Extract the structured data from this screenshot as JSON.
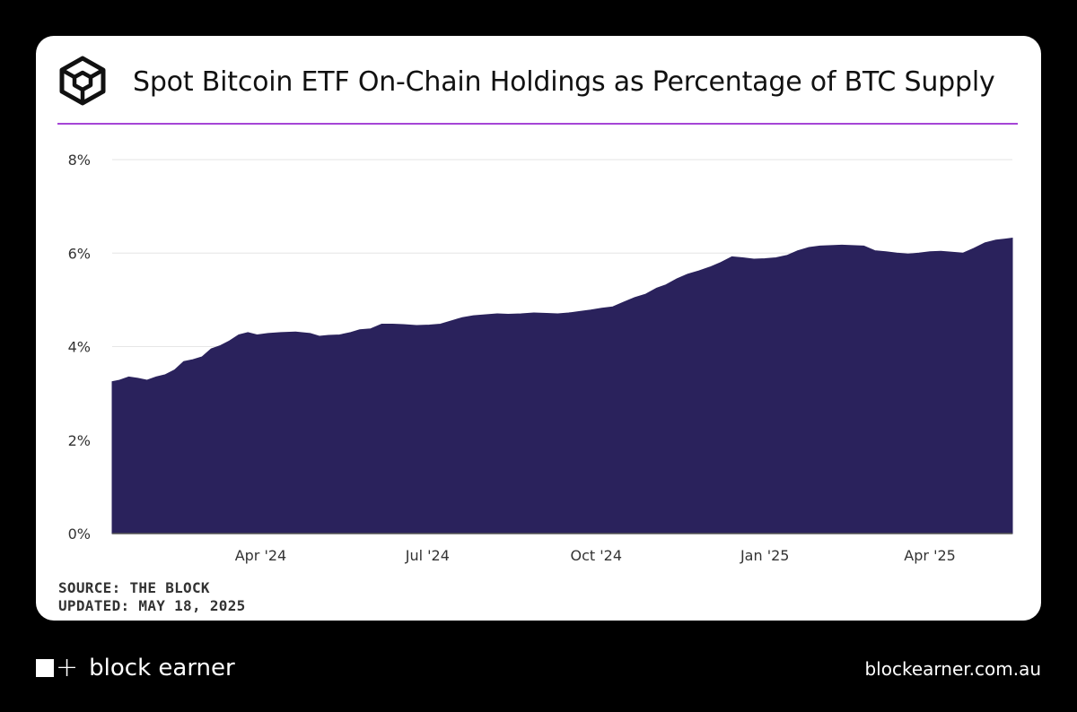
{
  "header": {
    "title": "Spot Bitcoin ETF On-Chain Holdings as Percentage of BTC Supply",
    "logo_icon": "the-block-cube-logo"
  },
  "footer_card": {
    "source": "SOURCE: THE BLOCK",
    "updated": "UPDATED: MAY 18, 2025"
  },
  "brand": {
    "name": "block earner",
    "url": "blockearner.com.au"
  },
  "colors": {
    "background": "#000000",
    "card": "#ffffff",
    "area_fill": "#2a225c",
    "accent_rule": "#a545d6",
    "grid": "#e6e6e6"
  },
  "chart_data": {
    "type": "area",
    "title": "Spot Bitcoin ETF On-Chain Holdings as Percentage of BTC Supply",
    "xlabel": "",
    "ylabel": "",
    "ylim": [
      0,
      8
    ],
    "yticks": [
      0,
      2,
      4,
      6,
      8
    ],
    "ytick_labels": [
      "0%",
      "2%",
      "4%",
      "6%",
      "8%"
    ],
    "xlim": [
      "2024-01-11",
      "2025-05-16"
    ],
    "xtick_labels": [
      {
        "date": "2024-04-01",
        "label": "Apr '24"
      },
      {
        "date": "2024-07-01",
        "label": "Jul '24"
      },
      {
        "date": "2024-10-01",
        "label": "Oct '24"
      },
      {
        "date": "2025-01-01",
        "label": "Jan '25"
      },
      {
        "date": "2025-04-01",
        "label": "Apr '25"
      }
    ],
    "grid": true,
    "series": [
      {
        "points": [
          [
            "2024-01-11",
            3.25
          ],
          [
            "2024-01-15",
            3.28
          ],
          [
            "2024-01-20",
            3.35
          ],
          [
            "2024-01-25",
            3.32
          ],
          [
            "2024-01-30",
            3.28
          ],
          [
            "2024-02-04",
            3.35
          ],
          [
            "2024-02-09",
            3.4
          ],
          [
            "2024-02-14",
            3.5
          ],
          [
            "2024-02-19",
            3.68
          ],
          [
            "2024-02-24",
            3.72
          ],
          [
            "2024-02-29",
            3.78
          ],
          [
            "2024-03-05",
            3.95
          ],
          [
            "2024-03-10",
            4.02
          ],
          [
            "2024-03-15",
            4.12
          ],
          [
            "2024-03-20",
            4.25
          ],
          [
            "2024-03-25",
            4.3
          ],
          [
            "2024-03-30",
            4.25
          ],
          [
            "2024-04-05",
            4.28
          ],
          [
            "2024-04-12",
            4.3
          ],
          [
            "2024-04-20",
            4.31
          ],
          [
            "2024-04-28",
            4.28
          ],
          [
            "2024-05-03",
            4.22
          ],
          [
            "2024-05-08",
            4.24
          ],
          [
            "2024-05-14",
            4.25
          ],
          [
            "2024-05-20",
            4.3
          ],
          [
            "2024-05-25",
            4.36
          ],
          [
            "2024-05-31",
            4.38
          ],
          [
            "2024-06-06",
            4.48
          ],
          [
            "2024-06-12",
            4.48
          ],
          [
            "2024-06-18",
            4.47
          ],
          [
            "2024-06-25",
            4.45
          ],
          [
            "2024-07-02",
            4.46
          ],
          [
            "2024-07-08",
            4.48
          ],
          [
            "2024-07-14",
            4.55
          ],
          [
            "2024-07-20",
            4.62
          ],
          [
            "2024-07-26",
            4.66
          ],
          [
            "2024-08-01",
            4.68
          ],
          [
            "2024-08-08",
            4.7
          ],
          [
            "2024-08-14",
            4.69
          ],
          [
            "2024-08-21",
            4.7
          ],
          [
            "2024-08-28",
            4.72
          ],
          [
            "2024-09-04",
            4.71
          ],
          [
            "2024-09-10",
            4.7
          ],
          [
            "2024-09-16",
            4.72
          ],
          [
            "2024-09-22",
            4.75
          ],
          [
            "2024-09-28",
            4.78
          ],
          [
            "2024-10-04",
            4.82
          ],
          [
            "2024-10-10",
            4.85
          ],
          [
            "2024-10-16",
            4.95
          ],
          [
            "2024-10-22",
            5.05
          ],
          [
            "2024-10-28",
            5.12
          ],
          [
            "2024-11-03",
            5.25
          ],
          [
            "2024-11-08",
            5.32
          ],
          [
            "2024-11-14",
            5.45
          ],
          [
            "2024-11-20",
            5.55
          ],
          [
            "2024-11-26",
            5.62
          ],
          [
            "2024-12-02",
            5.7
          ],
          [
            "2024-12-08",
            5.8
          ],
          [
            "2024-12-14",
            5.92
          ],
          [
            "2024-12-20",
            5.9
          ],
          [
            "2024-12-26",
            5.87
          ],
          [
            "2025-01-01",
            5.88
          ],
          [
            "2025-01-07",
            5.9
          ],
          [
            "2025-01-13",
            5.95
          ],
          [
            "2025-01-19",
            6.05
          ],
          [
            "2025-01-25",
            6.12
          ],
          [
            "2025-01-31",
            6.15
          ],
          [
            "2025-02-06",
            6.16
          ],
          [
            "2025-02-12",
            6.17
          ],
          [
            "2025-02-18",
            6.16
          ],
          [
            "2025-02-24",
            6.15
          ],
          [
            "2025-03-02",
            6.05
          ],
          [
            "2025-03-08",
            6.03
          ],
          [
            "2025-03-14",
            6.0
          ],
          [
            "2025-03-20",
            5.98
          ],
          [
            "2025-03-26",
            6.0
          ],
          [
            "2025-04-01",
            6.03
          ],
          [
            "2025-04-07",
            6.04
          ],
          [
            "2025-04-13",
            6.02
          ],
          [
            "2025-04-19",
            6.0
          ],
          [
            "2025-04-25",
            6.1
          ],
          [
            "2025-05-01",
            6.22
          ],
          [
            "2025-05-07",
            6.28
          ],
          [
            "2025-05-12",
            6.3
          ],
          [
            "2025-05-16",
            6.32
          ]
        ]
      }
    ]
  }
}
